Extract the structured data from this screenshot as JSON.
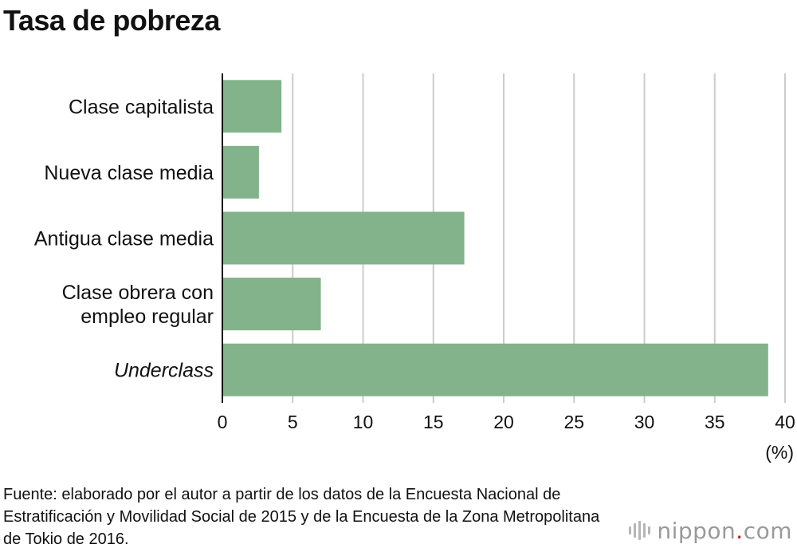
{
  "title": "Tasa de pobreza",
  "source": "Fuente: elaborado por el autor a partir de los datos de la Encuesta Nacional de Estratificación y Movilidad Social de 2015 y de la Encuesta de la Zona Metropolitana de Tokio de 2016.",
  "logo": {
    "name": "nippon",
    "dot": ".",
    "suffix": "com"
  },
  "colors": {
    "bar": "#82b38a",
    "grid": "#cccccc",
    "axis": "#111111"
  },
  "chart_data": {
    "type": "bar",
    "orientation": "horizontal",
    "title": "Tasa de pobreza",
    "categories": [
      "Clase capitalista",
      "Nueva clase media",
      "Antigua clase media",
      "Clase obrera con empleo regular",
      "Underclass"
    ],
    "category_lines": [
      [
        "Clase capitalista"
      ],
      [
        "Nueva clase media"
      ],
      [
        "Antigua clase media"
      ],
      [
        "Clase obrera con",
        "empleo regular"
      ],
      [
        "Underclass"
      ]
    ],
    "italic_categories": [
      "Underclass"
    ],
    "values": [
      4.2,
      2.6,
      17.2,
      7.0,
      38.8
    ],
    "xlim": [
      0,
      40
    ],
    "xticks": [
      0,
      5,
      10,
      15,
      20,
      25,
      30,
      35,
      40
    ],
    "xunit": "(%)",
    "grid": true
  }
}
